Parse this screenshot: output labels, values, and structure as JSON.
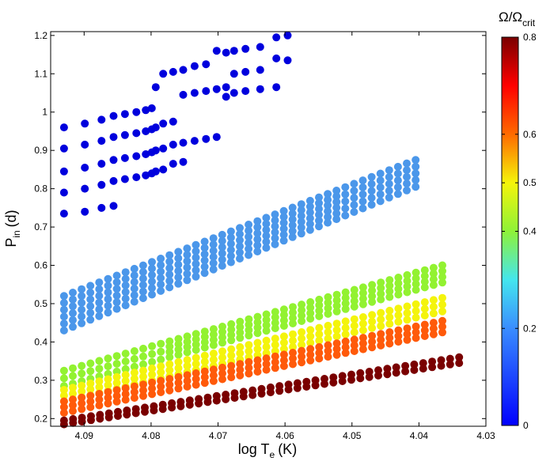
{
  "chart_data": {
    "type": "scatter",
    "title": "",
    "xlabel": {
      "main": "log T",
      "sub": "e",
      "unit": "(K)"
    },
    "ylabel": {
      "main": "P",
      "sub": "in",
      "unit": "(d)"
    },
    "xlim": [
      4.03,
      4.095
    ],
    "x_reversed": true,
    "ylim": [
      0.18,
      1.21
    ],
    "xticks": [
      "4.09",
      "4.08",
      "4.07",
      "4.06",
      "4.05",
      "4.04",
      "4.03"
    ],
    "yticks": [
      "0.2",
      "0.3",
      "0.4",
      "0.5",
      "0.6",
      "0.7",
      "0.8",
      "0.9",
      "1",
      "1.1",
      "1.2"
    ],
    "grid": false,
    "colorbar": {
      "title_main": "Ω/Ω",
      "title_sub": "crit",
      "range": [
        0,
        0.8
      ],
      "ticks": [
        "0",
        "0.2",
        "0.4",
        "0.5",
        "0.6",
        "0.8"
      ],
      "colormap": "jet"
    },
    "series": [
      {
        "omega": 0.0,
        "color": "#0000dd",
        "lines": [
          {
            "x": [
              4.093,
              4.0899,
              4.0874,
              4.0856,
              4.0839,
              4.0822,
              4.0808,
              4.0799,
              4.0793,
              4.0782,
              4.0767,
              4.0752,
              4.0735,
              4.0718,
              4.0702,
              4.0688,
              4.0676,
              4.0659,
              4.0637,
              4.0613,
              4.0596
            ],
            "y": [
              0.96,
              0.97,
              0.98,
              0.99,
              0.995,
              1.0,
              1.005,
              1.01,
              1.065,
              1.1,
              1.105,
              1.11,
              1.12,
              1.125,
              1.16,
              1.155,
              1.16,
              1.165,
              1.17,
              1.195,
              1.2
            ]
          },
          {
            "x": [
              4.093,
              4.0899,
              4.0874,
              4.0856,
              4.0839,
              4.0822,
              4.0808,
              4.0799,
              4.0793,
              4.0782,
              4.0767,
              4.0752,
              4.0735,
              4.0718,
              4.0702,
              4.0688,
              4.0676,
              4.0659,
              4.0637,
              4.0613,
              4.0596
            ],
            "y": [
              0.905,
              0.915,
              0.925,
              0.935,
              0.94,
              0.945,
              0.95,
              0.955,
              0.96,
              0.97,
              0.975,
              1.045,
              1.05,
              1.055,
              1.06,
              1.065,
              1.1,
              1.105,
              1.11,
              1.14,
              1.135
            ]
          },
          {
            "x": [
              4.093,
              4.0899,
              4.0874,
              4.0856,
              4.0839,
              4.0822,
              4.0808,
              4.0799,
              4.0793,
              4.0782,
              4.0767,
              4.0752,
              4.0735,
              4.0718,
              4.0702,
              4.0688,
              4.0676,
              4.0659,
              4.0637,
              4.0613
            ],
            "y": [
              0.845,
              0.855,
              0.865,
              0.875,
              0.88,
              0.885,
              0.89,
              0.895,
              0.9,
              0.905,
              0.915,
              0.92,
              0.925,
              0.93,
              0.935,
              1.04,
              1.05,
              1.055,
              1.06,
              1.065
            ]
          },
          {
            "x": [
              4.093,
              4.0899,
              4.0874,
              4.0856,
              4.0839,
              4.0822,
              4.0808,
              4.0799,
              4.0793,
              4.0782,
              4.0767,
              4.0752
            ],
            "y": [
              0.79,
              0.8,
              0.81,
              0.82,
              0.825,
              0.83,
              0.835,
              0.84,
              0.845,
              0.85,
              0.865,
              0.87
            ]
          },
          {
            "x": [
              4.093,
              4.0899,
              4.0874,
              4.0856
            ],
            "y": [
              0.735,
              0.74,
              0.75,
              0.755
            ]
          }
        ]
      },
      {
        "omega": 0.2,
        "color": "#4b97ea",
        "x_start": 4.093,
        "x_end": 4.0405,
        "n": 41,
        "y_min_start": 0.43,
        "y_min_end": 0.805,
        "y_max_start": 0.52,
        "y_max_end": 0.875
      },
      {
        "omega": 0.4,
        "color": "#92f231",
        "x_start": 4.093,
        "x_end": 4.0365,
        "n": 44,
        "y_min_start": 0.285,
        "y_min_end": 0.555,
        "y_max_start": 0.325,
        "y_max_end": 0.6
      },
      {
        "omega": 0.5,
        "color": "#f4f40c",
        "x_start": 4.093,
        "x_end": 4.0365,
        "n": 44,
        "y_min_start": 0.245,
        "y_min_end": 0.48,
        "y_max_start": 0.275,
        "y_max_end": 0.515
      },
      {
        "omega": 0.6,
        "color": "#ff5a0a",
        "x_start": 4.093,
        "x_end": 4.0365,
        "n": 44,
        "y_min_start": 0.215,
        "y_min_end": 0.425,
        "y_max_start": 0.245,
        "y_max_end": 0.455
      },
      {
        "omega": 0.8,
        "color": "#7a0000",
        "x_start": 4.093,
        "x_end": 4.034,
        "n": 45,
        "y_min_start": 0.185,
        "y_min_end": 0.345,
        "y_max_start": 0.195,
        "y_max_end": 0.36
      }
    ]
  }
}
